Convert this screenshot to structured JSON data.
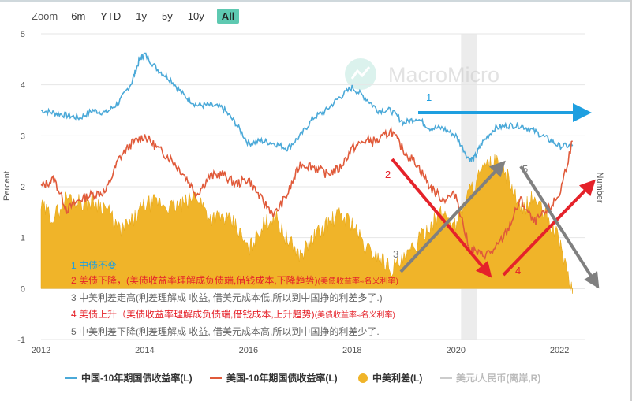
{
  "range_selector": {
    "label": "Zoom",
    "buttons": [
      "6m",
      "YTD",
      "1y",
      "5y",
      "10y",
      "All"
    ],
    "active": "All"
  },
  "watermark": "MacroMicro",
  "chart_data": {
    "type": "line",
    "ylabel": "Percent",
    "y2label": "Number",
    "ylim": [
      -1,
      5
    ],
    "yticks": [
      -1,
      0,
      1,
      2,
      3,
      4,
      5
    ],
    "xlim": [
      2012,
      2022.5
    ],
    "xticks": [
      2012,
      2014,
      2016,
      2018,
      2020,
      2022
    ],
    "grid": true,
    "shaded_period": [
      2020.1,
      2020.4
    ],
    "series": [
      {
        "name": "中国-10年期国债收益率(L)",
        "color": "#4ba9d8",
        "x": [
          2012.0,
          2012.25,
          2012.5,
          2012.75,
          2013.0,
          2013.25,
          2013.5,
          2013.75,
          2013.9,
          2014.0,
          2014.25,
          2014.5,
          2014.75,
          2015.0,
          2015.25,
          2015.5,
          2015.75,
          2016.0,
          2016.25,
          2016.5,
          2016.75,
          2017.0,
          2017.25,
          2017.5,
          2017.75,
          2018.0,
          2018.25,
          2018.5,
          2018.75,
          2019.0,
          2019.25,
          2019.5,
          2019.75,
          2020.0,
          2020.25,
          2020.35,
          2020.5,
          2020.75,
          2021.0,
          2021.25,
          2021.5,
          2021.75,
          2022.0,
          2022.25
        ],
        "values": [
          3.5,
          3.45,
          3.4,
          3.35,
          3.5,
          3.45,
          3.65,
          4.05,
          4.5,
          4.6,
          4.3,
          4.1,
          3.8,
          3.6,
          3.6,
          3.55,
          3.25,
          2.85,
          2.9,
          2.85,
          2.75,
          3.0,
          3.35,
          3.5,
          3.75,
          3.95,
          3.75,
          3.5,
          3.5,
          3.25,
          3.35,
          3.15,
          3.15,
          3.0,
          2.55,
          2.55,
          2.85,
          3.15,
          3.2,
          3.2,
          3.1,
          2.95,
          2.8,
          2.8
        ]
      },
      {
        "name": "美国-10年期国债收益率(L)",
        "color": "#e05a3a",
        "x": [
          2012.0,
          2012.25,
          2012.5,
          2012.75,
          2013.0,
          2013.25,
          2013.5,
          2013.75,
          2014.0,
          2014.25,
          2014.5,
          2014.75,
          2015.0,
          2015.25,
          2015.5,
          2015.75,
          2016.0,
          2016.25,
          2016.5,
          2016.75,
          2017.0,
          2017.25,
          2017.5,
          2017.75,
          2018.0,
          2018.25,
          2018.5,
          2018.75,
          2019.0,
          2019.25,
          2019.5,
          2019.75,
          2020.0,
          2020.25,
          2020.5,
          2020.75,
          2021.0,
          2021.25,
          2021.5,
          2021.75,
          2022.0,
          2022.25
        ],
        "values": [
          2.0,
          2.15,
          1.55,
          1.75,
          1.85,
          1.9,
          2.55,
          2.85,
          3.0,
          2.75,
          2.55,
          2.25,
          1.85,
          2.2,
          2.25,
          2.05,
          2.15,
          1.75,
          1.45,
          1.85,
          2.45,
          2.4,
          2.25,
          2.35,
          2.75,
          2.9,
          2.9,
          3.1,
          2.7,
          2.45,
          2.0,
          1.75,
          1.85,
          0.8,
          0.65,
          0.75,
          1.15,
          1.75,
          1.3,
          1.5,
          1.85,
          2.9
        ]
      },
      {
        "name": "中美利差(L)",
        "color": "#f0b429",
        "x": [
          2012.0,
          2012.25,
          2012.5,
          2012.75,
          2013.0,
          2013.25,
          2013.5,
          2013.75,
          2014.0,
          2014.25,
          2014.5,
          2014.75,
          2015.0,
          2015.25,
          2015.5,
          2015.75,
          2016.0,
          2016.25,
          2016.5,
          2016.75,
          2017.0,
          2017.25,
          2017.5,
          2017.75,
          2018.0,
          2018.25,
          2018.5,
          2018.75,
          2019.0,
          2019.25,
          2019.5,
          2019.75,
          2020.0,
          2020.25,
          2020.5,
          2020.75,
          2021.0,
          2021.25,
          2021.5,
          2021.75,
          2022.0,
          2022.25
        ],
        "values": [
          1.6,
          1.4,
          1.8,
          1.7,
          1.7,
          1.6,
          1.15,
          1.3,
          1.65,
          1.7,
          1.6,
          1.65,
          1.85,
          1.4,
          1.4,
          1.25,
          0.75,
          1.2,
          1.45,
          0.95,
          0.65,
          1.0,
          1.25,
          1.45,
          1.3,
          0.8,
          0.65,
          0.4,
          0.55,
          0.9,
          1.25,
          1.5,
          1.25,
          1.9,
          2.3,
          2.5,
          2.2,
          1.5,
          1.8,
          1.4,
          0.95,
          -0.1
        ]
      },
      {
        "name": "美元/人民币(离岸,R)",
        "color": "#cccccc",
        "hidden": true
      }
    ],
    "arrow_labels": [
      "1",
      "2",
      "3",
      "4",
      "5"
    ],
    "notes": [
      {
        "text": "1 中债不变"
      },
      {
        "text": "2 美债下降，(美债收益率理解成负债端,借钱成本,下降趋势)",
        "sub": "(美债收益率≈名义利率)"
      },
      {
        "text": "3 中美利差走高(利差理解成 收益, 借美元成本低,所以到中国挣的利差多了.)"
      },
      {
        "text": "4 美债上升（美债收益率理解成负债端,借钱成本,上升趋势)",
        "sub": "(美债收益率≈名义利率)"
      },
      {
        "text": "5 中美利差下降(利差理解成 收益, 借美元成本高,所以到中国挣的利差少了."
      }
    ]
  }
}
